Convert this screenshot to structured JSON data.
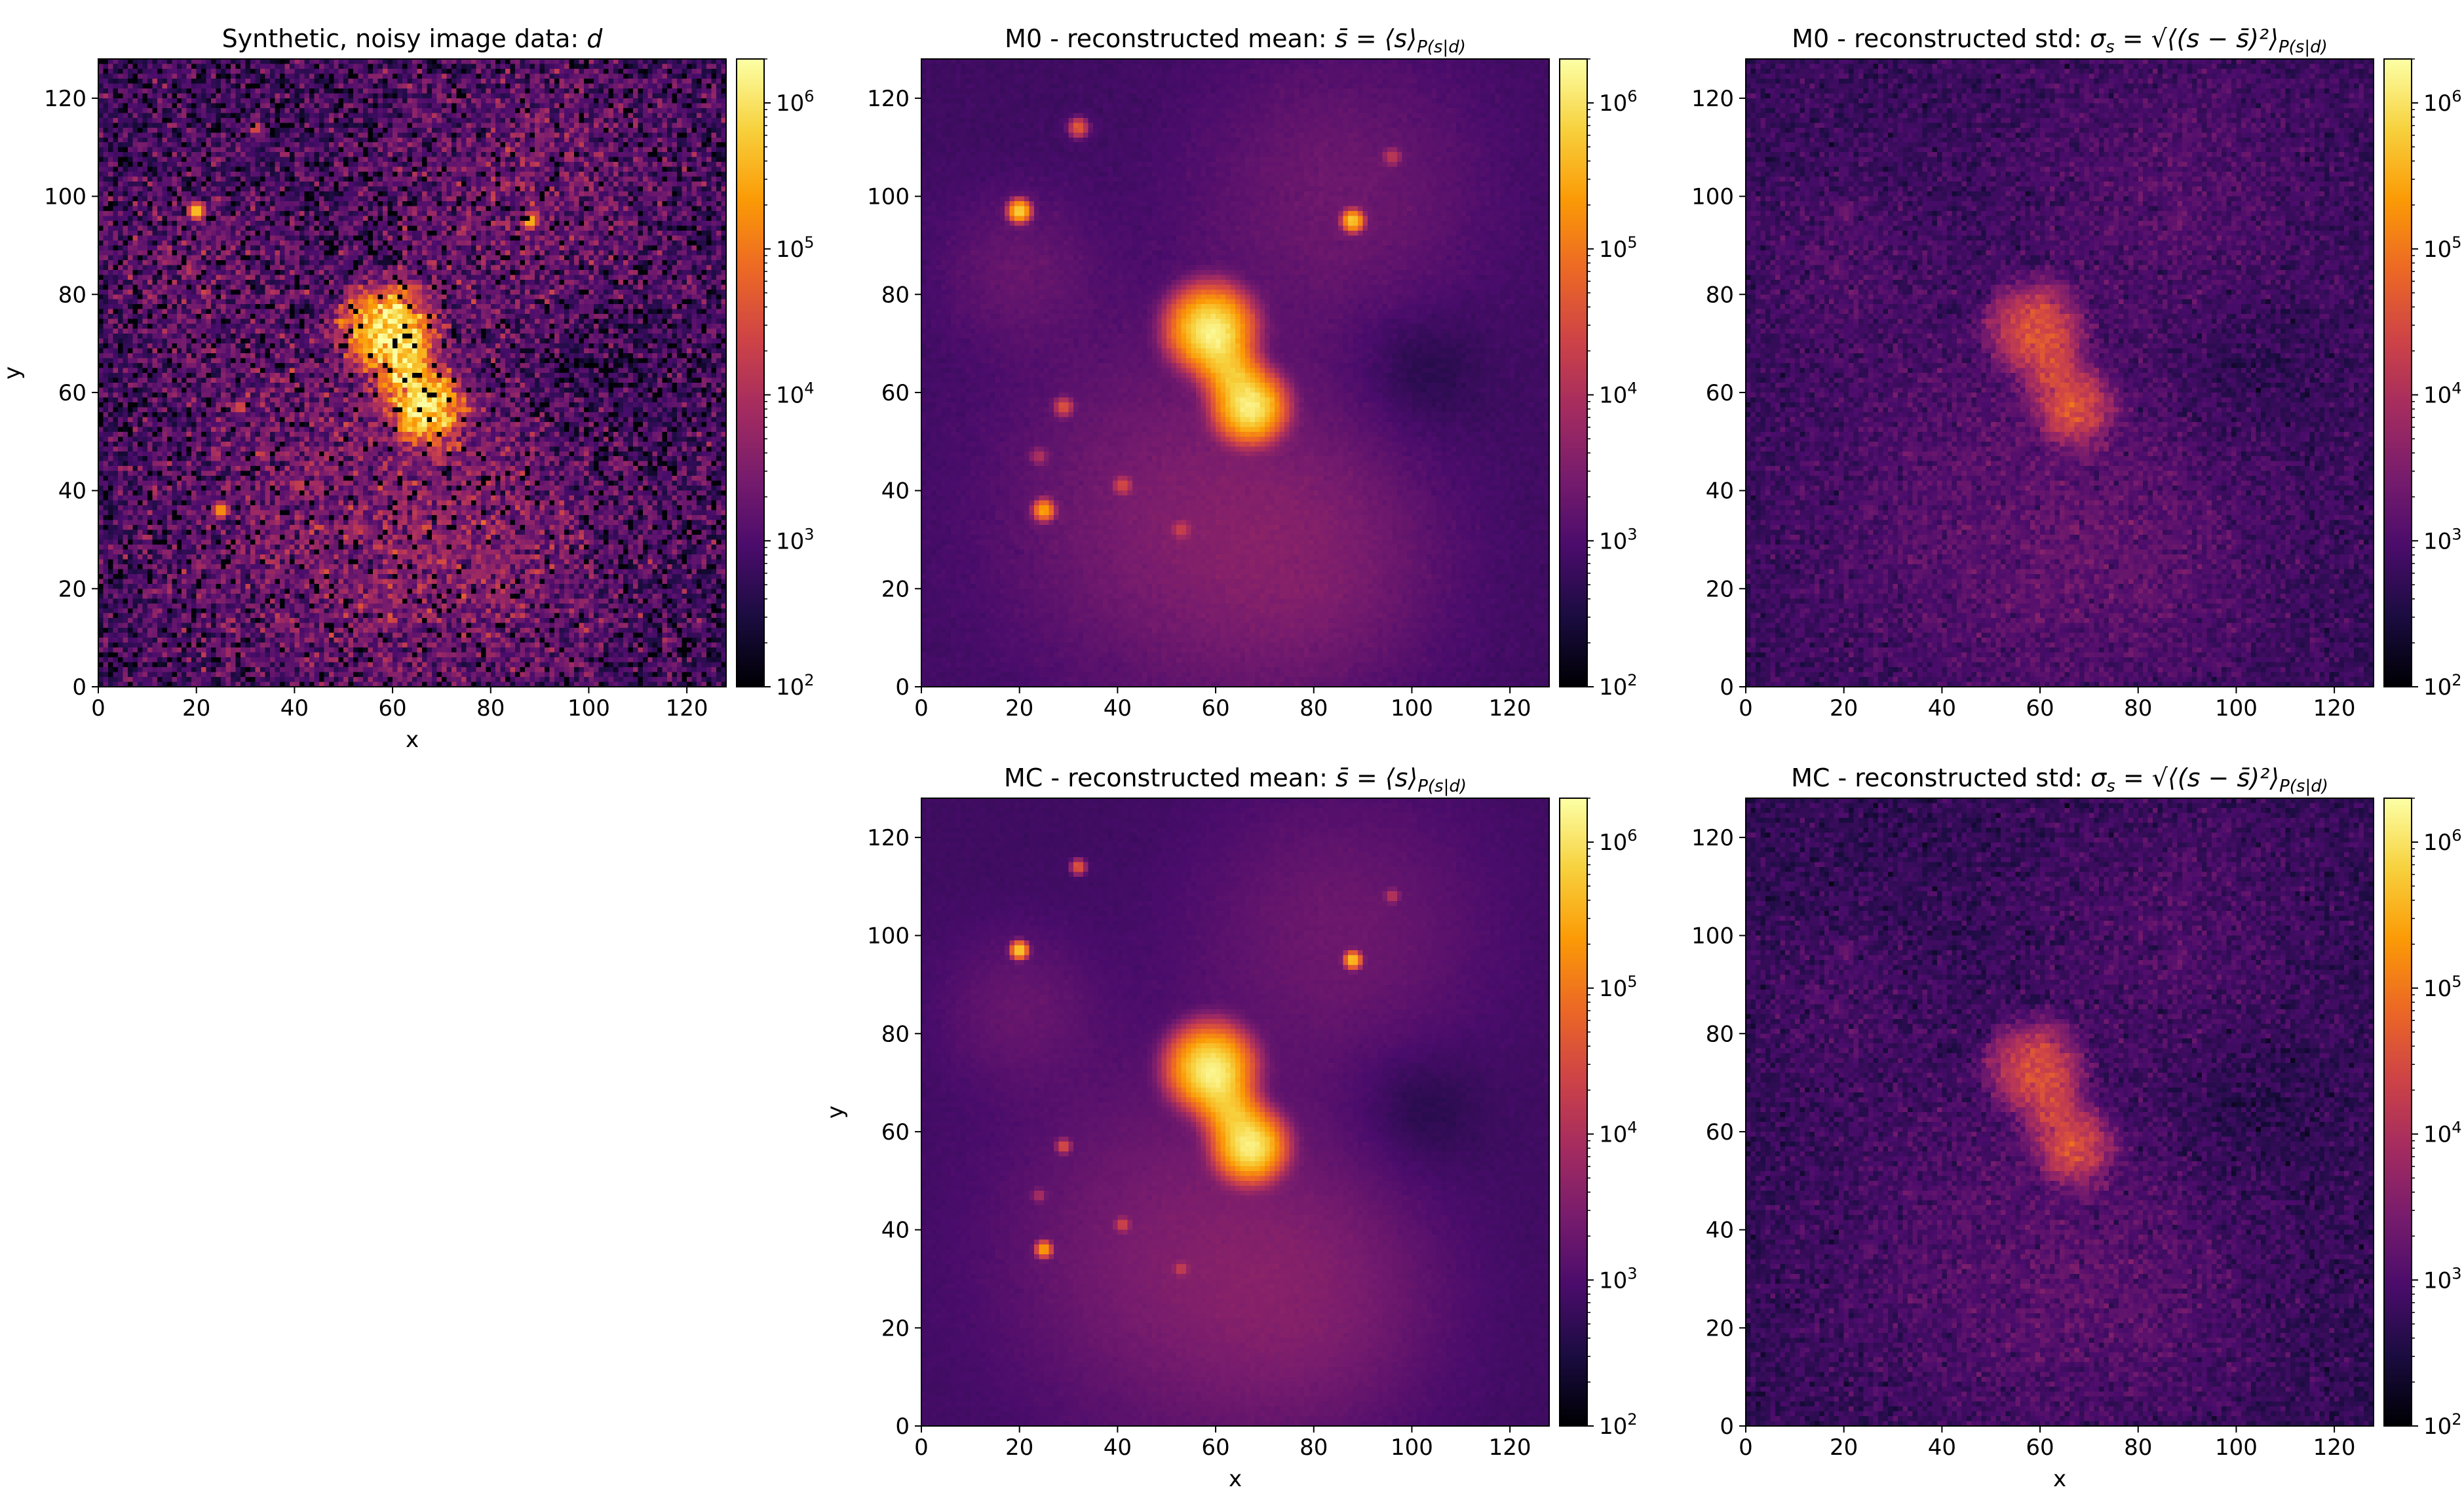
{
  "chart_data": [
    {
      "type": "heatmap",
      "title": "Synthetic, noisy image data: d",
      "title_parts": [
        "Synthetic, noisy image data: ",
        "d"
      ],
      "xlabel": "x",
      "ylabel": "y",
      "xlim": [
        0,
        128
      ],
      "ylim": [
        0,
        128
      ],
      "xticks": [
        "0",
        "20",
        "40",
        "60",
        "80",
        "100",
        "120"
      ],
      "yticks": [
        "0",
        "20",
        "40",
        "60",
        "80",
        "100",
        "120"
      ],
      "image": "noisy"
    },
    {
      "type": "heatmap",
      "title": "M0 - reconstructed mean: s̄ = ⟨s⟩P(s|d)",
      "title_parts": [
        "M0 - reconstructed mean: ",
        "s̄ = ⟨s⟩",
        "P(s|d)"
      ],
      "xlabel": "",
      "ylabel": "",
      "xlim": [
        0,
        128
      ],
      "ylim": [
        0,
        128
      ],
      "xticks": [
        "0",
        "20",
        "40",
        "60",
        "80",
        "100",
        "120"
      ],
      "yticks": [
        "0",
        "20",
        "40",
        "60",
        "80",
        "100",
        "120"
      ],
      "image": "mean_m0"
    },
    {
      "type": "heatmap",
      "title": "M0 - reconstructed std: σs = √⟨(s − s̄)²⟩P(s|d)",
      "title_parts": [
        "M0 - reconstructed std: ",
        "σ",
        "s",
        " = √⟨(s − s̄)²⟩",
        "P(s|d)"
      ],
      "xlabel": "",
      "ylabel": "",
      "xlim": [
        0,
        128
      ],
      "ylim": [
        0,
        128
      ],
      "xticks": [
        "0",
        "20",
        "40",
        "60",
        "80",
        "100",
        "120"
      ],
      "yticks": [
        "0",
        "20",
        "40",
        "60",
        "80",
        "100",
        "120"
      ],
      "image": "std_m0"
    },
    {
      "type": "heatmap",
      "title": "MC - reconstructed mean: s̄ = ⟨s⟩P(s|d)",
      "title_parts": [
        "MC - reconstructed mean: ",
        "s̄ = ⟨s⟩",
        "P(s|d)"
      ],
      "xlabel": "x",
      "ylabel": "y",
      "xlim": [
        0,
        128
      ],
      "ylim": [
        0,
        128
      ],
      "xticks": [
        "0",
        "20",
        "40",
        "60",
        "80",
        "100",
        "120"
      ],
      "yticks": [
        "0",
        "20",
        "40",
        "60",
        "80",
        "100",
        "120"
      ],
      "image": "mean_mc"
    },
    {
      "type": "heatmap",
      "title": "MC - reconstructed std: σs = √⟨(s − s̄)²⟩P(s|d)",
      "title_parts": [
        "MC - reconstructed std: ",
        "σ",
        "s",
        " = √⟨(s − s̄)²⟩",
        "P(s|d)"
      ],
      "xlabel": "x",
      "ylabel": "",
      "xlim": [
        0,
        128
      ],
      "ylim": [
        0,
        128
      ],
      "xticks": [
        "0",
        "20",
        "40",
        "60",
        "80",
        "100",
        "120"
      ],
      "yticks": [
        "0",
        "20",
        "40",
        "60",
        "80",
        "100",
        "120"
      ],
      "image": "std_mc"
    }
  ],
  "colorbar": {
    "colormap": "inferno",
    "scale": "log",
    "range": [
      100,
      2000000
    ],
    "tick_values": [
      100,
      1000,
      10000,
      100000,
      1000000
    ],
    "tick_labels": [
      {
        "base": "10",
        "exp": "2"
      },
      {
        "base": "10",
        "exp": "3"
      },
      {
        "base": "10",
        "exp": "4"
      },
      {
        "base": "10",
        "exp": "5"
      },
      {
        "base": "10",
        "exp": "6"
      }
    ]
  },
  "colors": {
    "inferno": [
      "#000004",
      "#1b0c41",
      "#4a0c6b",
      "#781c6d",
      "#a52c60",
      "#cf4446",
      "#ed6925",
      "#fb9b06",
      "#f7d13d",
      "#fcffa4"
    ]
  }
}
